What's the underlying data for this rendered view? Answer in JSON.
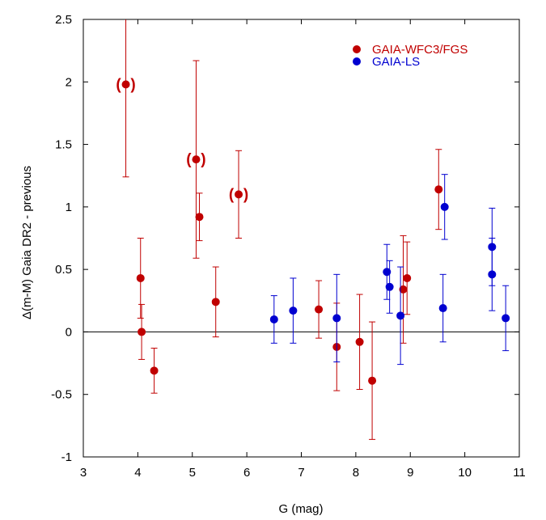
{
  "chart_data": {
    "type": "scatter",
    "title": "",
    "xlabel": "G (mag)",
    "ylabel": "Δ(m-M) Gaia DR2 - previous",
    "xlim": [
      3,
      11
    ],
    "ylim": [
      -1,
      2.5
    ],
    "x_ticks": [
      3,
      4,
      5,
      6,
      7,
      8,
      9,
      10,
      11
    ],
    "y_ticks": [
      -1,
      -0.5,
      0,
      0.5,
      1,
      1.5,
      2,
      2.5
    ],
    "x_tick_labels": [
      "3",
      "4",
      "5",
      "6",
      "7",
      "8",
      "9",
      "10",
      "11"
    ],
    "y_tick_labels": [
      "-1",
      "-0.5",
      "0",
      "0.5",
      "1",
      "1.5",
      "2",
      "2.5"
    ],
    "reference_line": 0,
    "legend_position": "top-right",
    "series": [
      {
        "name": "GAIA-WFC3/FGS",
        "color": "#c00000",
        "points": [
          {
            "x": 3.78,
            "y": 1.98,
            "err": 0.74,
            "bracketed": true
          },
          {
            "x": 4.05,
            "y": 0.43,
            "err": 0.32,
            "bracketed": false
          },
          {
            "x": 4.07,
            "y": 0.0,
            "err": 0.22,
            "bracketed": false
          },
          {
            "x": 4.3,
            "y": -0.31,
            "err": 0.18,
            "bracketed": false
          },
          {
            "x": 5.07,
            "y": 1.38,
            "err": 0.79,
            "bracketed": true
          },
          {
            "x": 5.13,
            "y": 0.92,
            "err": 0.19,
            "bracketed": false
          },
          {
            "x": 5.43,
            "y": 0.24,
            "err": 0.28,
            "bracketed": false
          },
          {
            "x": 5.85,
            "y": 1.1,
            "err": 0.35,
            "bracketed": true
          },
          {
            "x": 7.32,
            "y": 0.18,
            "err": 0.23,
            "bracketed": false
          },
          {
            "x": 7.65,
            "y": -0.12,
            "err": 0.35,
            "bracketed": false
          },
          {
            "x": 8.07,
            "y": -0.08,
            "err": 0.38,
            "bracketed": false
          },
          {
            "x": 8.3,
            "y": -0.39,
            "err": 0.47,
            "bracketed": false
          },
          {
            "x": 8.87,
            "y": 0.34,
            "err": 0.43,
            "bracketed": false
          },
          {
            "x": 8.94,
            "y": 0.43,
            "err": 0.29,
            "bracketed": false
          },
          {
            "x": 9.52,
            "y": 1.14,
            "err": 0.32,
            "bracketed": false
          }
        ]
      },
      {
        "name": "GAIA-LS",
        "color": "#0000d0",
        "points": [
          {
            "x": 6.5,
            "y": 0.1,
            "err": 0.19
          },
          {
            "x": 6.85,
            "y": 0.17,
            "err": 0.26
          },
          {
            "x": 7.65,
            "y": 0.11,
            "err": 0.35
          },
          {
            "x": 8.57,
            "y": 0.48,
            "err": 0.22
          },
          {
            "x": 8.62,
            "y": 0.36,
            "err": 0.21
          },
          {
            "x": 8.82,
            "y": 0.13,
            "err": 0.39
          },
          {
            "x": 9.6,
            "y": 0.19,
            "err": 0.27
          },
          {
            "x": 9.63,
            "y": 1.0,
            "err": 0.26
          },
          {
            "x": 10.5,
            "y": 0.46,
            "err": 0.29
          },
          {
            "x": 10.5,
            "y": 0.68,
            "err": 0.31
          },
          {
            "x": 10.75,
            "y": 0.11,
            "err": 0.26
          }
        ]
      }
    ]
  }
}
